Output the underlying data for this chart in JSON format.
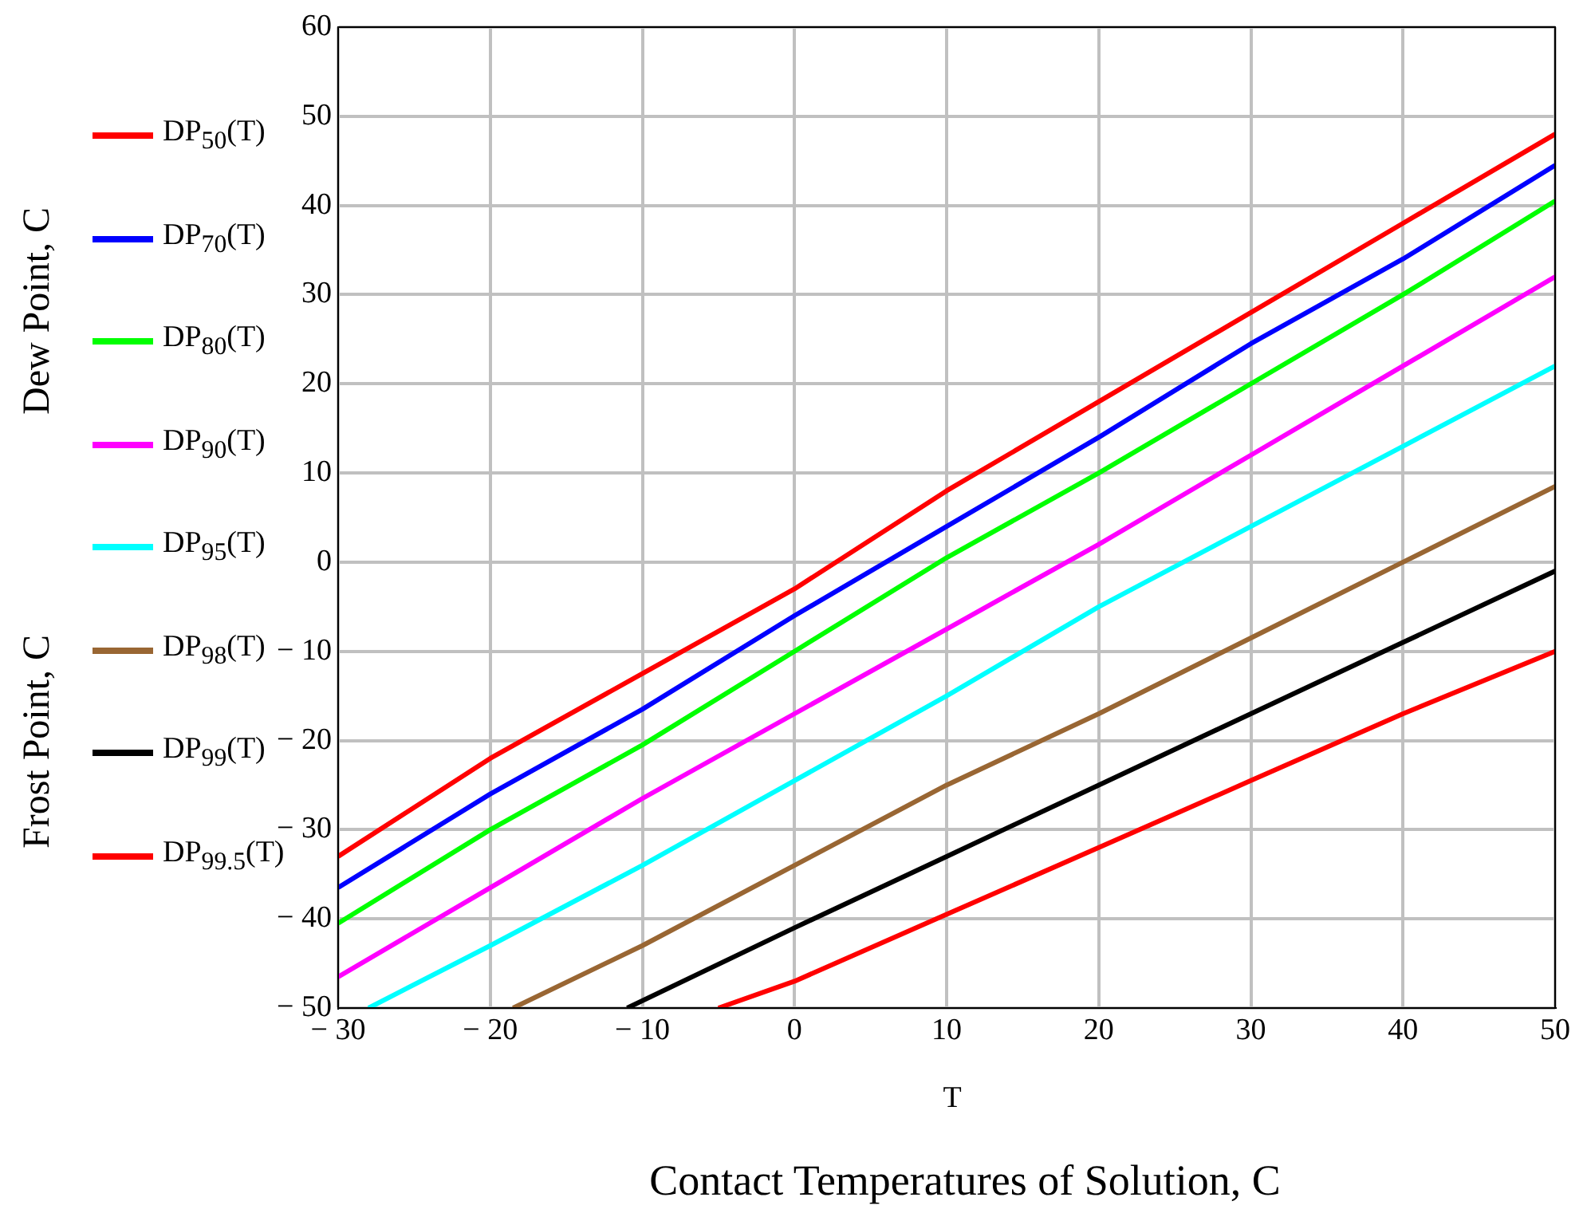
{
  "chart_data": {
    "type": "line",
    "xlabel": "T",
    "annotations": [
      "Dew Point, C",
      "Frost Point, C",
      "Contact Temperatures of Solution, C"
    ],
    "xlim": [
      -30,
      50
    ],
    "ylim": [
      -50,
      60
    ],
    "xticks": [
      {
        "value": -30,
        "label": "− 30"
      },
      {
        "value": -20,
        "label": "− 20"
      },
      {
        "value": -10,
        "label": "− 10"
      },
      0,
      10,
      20,
      30,
      40,
      50
    ],
    "yticks": [
      {
        "value": -50,
        "label": "− 50"
      },
      {
        "value": -40,
        "label": "− 40"
      },
      {
        "value": -30,
        "label": "− 30"
      },
      {
        "value": -20,
        "label": "− 20"
      },
      {
        "value": -10,
        "label": "− 10"
      },
      0,
      10,
      20,
      30,
      40,
      50,
      60
    ],
    "grid": true,
    "legend": "left",
    "marker": "none",
    "line_style": "solid",
    "series": [
      {
        "name": "DP$_{50}$(T)",
        "color": "#ff0000",
        "x": [
          -30,
          -20,
          -10,
          0,
          10,
          20,
          30,
          40,
          50
        ],
        "values": [
          -33,
          -22,
          -12.5,
          -3,
          8,
          18,
          28,
          38,
          48
        ]
      },
      {
        "name": "DP$_{70}$(T)",
        "color": "#0000ff",
        "x": [
          -30,
          -20,
          -10,
          0,
          10,
          20,
          30,
          40,
          50
        ],
        "values": [
          -36.5,
          -26,
          -16.5,
          -6,
          4,
          14,
          24.5,
          34,
          44.5
        ]
      },
      {
        "name": "DP$_{80}$(T)",
        "color": "#00ff00",
        "x": [
          -30,
          -20,
          -10,
          0,
          10,
          20,
          30,
          40,
          50
        ],
        "values": [
          -40.5,
          -30,
          -20.5,
          -10,
          0.5,
          10,
          20,
          30,
          40.5
        ]
      },
      {
        "name": "DP$_{90}$(T)",
        "color": "#ff00ff",
        "x": [
          -30,
          -20,
          -10,
          0,
          10,
          20,
          30,
          40,
          50
        ],
        "values": [
          -46.5,
          -36.5,
          -26.5,
          -17,
          -7.5,
          2,
          12,
          22,
          32
        ]
      },
      {
        "name": "DP$_{95}$(T)",
        "color": "#00ffff",
        "x": [
          -28,
          -20,
          -10,
          0,
          10,
          20,
          30,
          40,
          50
        ],
        "values": [
          -50,
          -43,
          -34,
          -24.5,
          -15,
          -5,
          4,
          13,
          22
        ]
      },
      {
        "name": "DP$_{98}$(T)",
        "color": "#996633",
        "x": [
          -18.5,
          -10,
          0,
          10,
          20,
          30,
          40,
          50
        ],
        "values": [
          -50,
          -43,
          -34,
          -25,
          -17,
          -8.5,
          0,
          8.5
        ]
      },
      {
        "name": "DP$_{99}$(T)",
        "color": "#000000",
        "x": [
          -11,
          0,
          10,
          20,
          30,
          40,
          50
        ],
        "values": [
          -50,
          -41,
          -33,
          -25,
          -17,
          -9,
          -1
        ]
      },
      {
        "name": "DP$_{99.5}$(T)",
        "color": "#ff0000",
        "x": [
          -5,
          0,
          10,
          20,
          30,
          40,
          50
        ],
        "values": [
          -50,
          -47,
          -39.5,
          -32,
          -24.5,
          -17,
          -10
        ]
      }
    ]
  }
}
